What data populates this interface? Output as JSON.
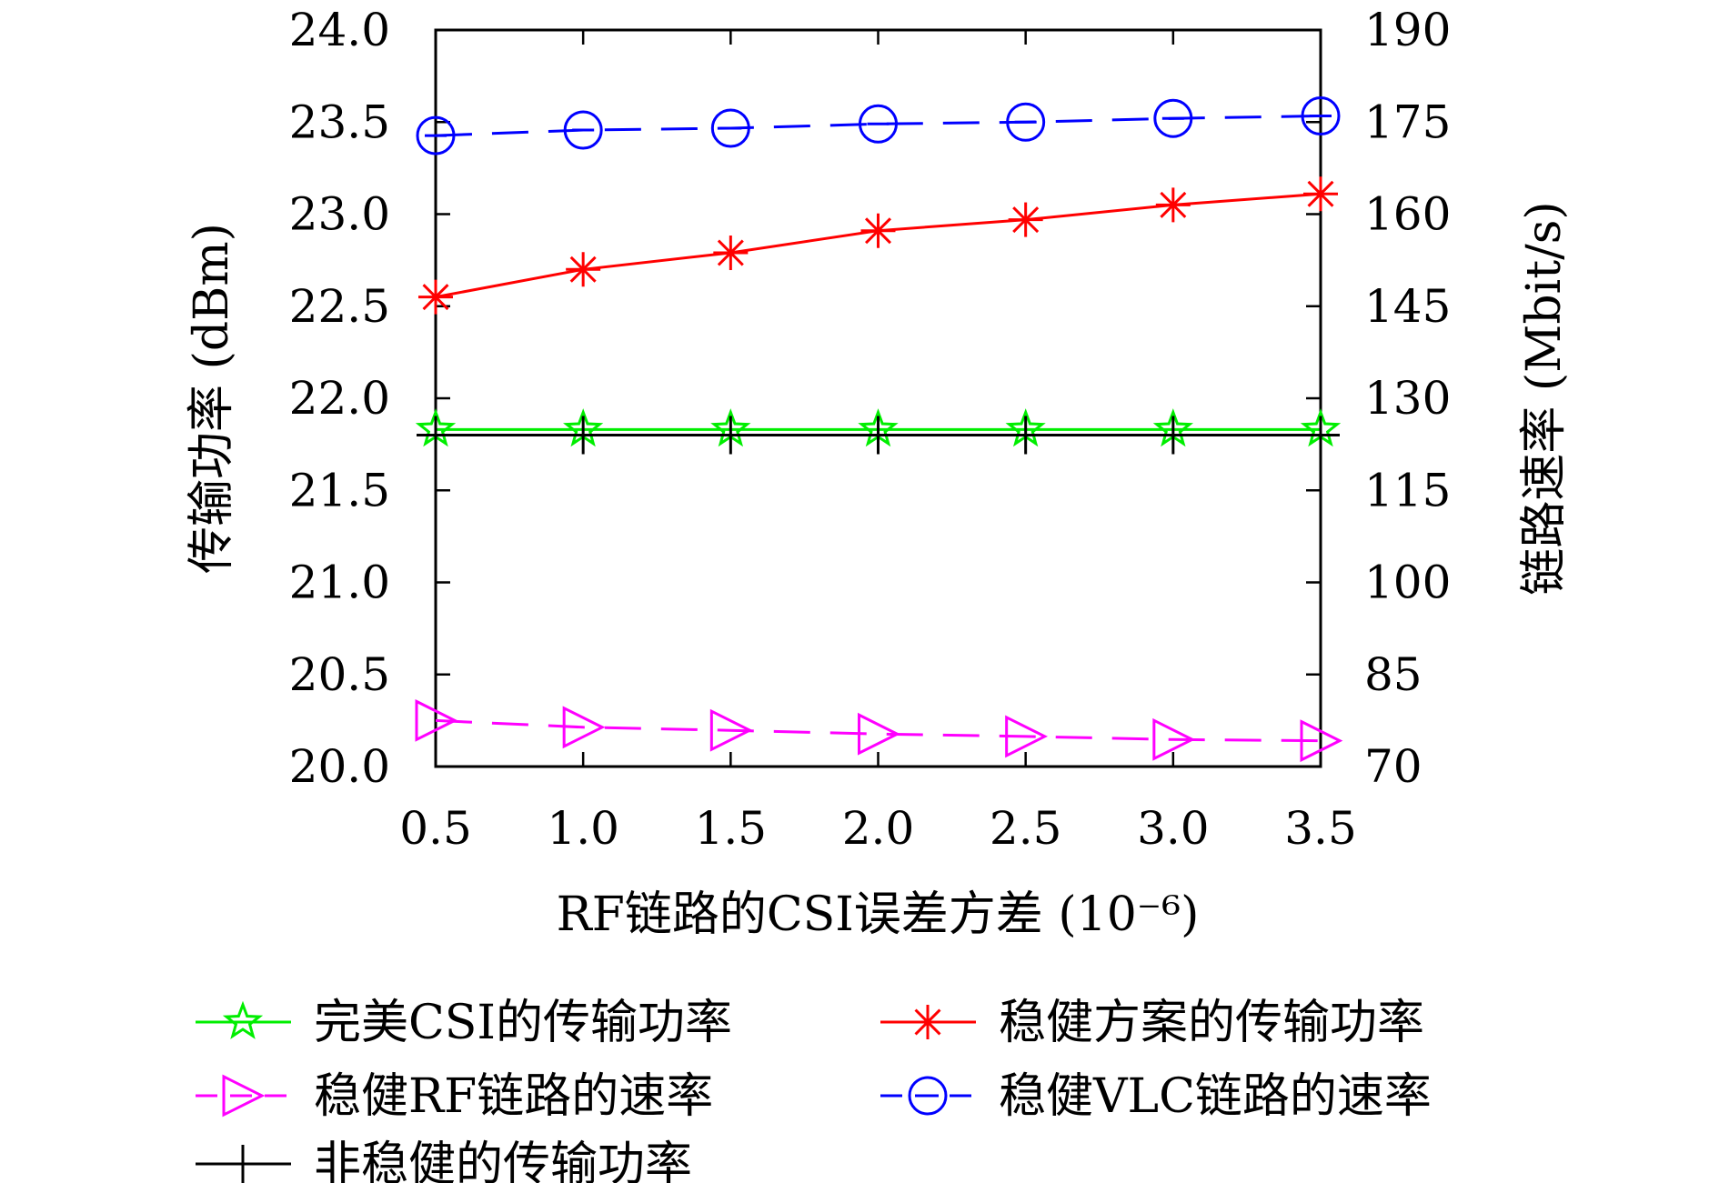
{
  "chart_data": {
    "type": "line",
    "x": [
      0.5,
      1.0,
      1.5,
      2.0,
      2.5,
      3.0,
      3.5
    ],
    "x_tick_labels": [
      "0.5",
      "1.0",
      "1.5",
      "2.0",
      "2.5",
      "3.0",
      "3.5"
    ],
    "xlim": [
      0.5,
      3.5
    ],
    "xlabel": "RF链路的CSI误差方差 (10⁻⁶)",
    "ylabel_left": "传输功率 (dBm)",
    "ylabel_right": "链路速率 (Mbit/s)",
    "ylim_left": [
      20.0,
      24.0
    ],
    "ylim_right": [
      70,
      190
    ],
    "y_left_tick_labels": [
      "20.0",
      "20.5",
      "21.0",
      "21.5",
      "22.0",
      "22.5",
      "23.0",
      "23.5",
      "24.0"
    ],
    "y_right_tick_labels": [
      "70",
      "85",
      "100",
      "115",
      "130",
      "145",
      "160",
      "175",
      "190"
    ],
    "legend_position": "bottom",
    "series": [
      {
        "name": "完美CSI的传输功率",
        "axis": "left",
        "color": "#00ee00",
        "marker": "star-icon",
        "dash": "solid",
        "values": [
          21.83,
          21.83,
          21.83,
          21.83,
          21.83,
          21.83,
          21.83
        ]
      },
      {
        "name": "稳健方案的传输功率",
        "axis": "left",
        "color": "#ff0000",
        "marker": "asterisk-icon",
        "dash": "solid",
        "values": [
          22.55,
          22.7,
          22.79,
          22.91,
          22.97,
          23.05,
          23.11
        ]
      },
      {
        "name": "稳健RF链路的速率",
        "axis": "right",
        "color": "#ff00ff",
        "marker": "triangle-right-icon",
        "dash": "dashed",
        "values": [
          77.5,
          76.4,
          75.9,
          75.3,
          74.9,
          74.4,
          74.2
        ]
      },
      {
        "name": "稳健VLC链路的速率",
        "axis": "right",
        "color": "#0000ff",
        "marker": "circle-minus-icon",
        "dash": "dashed",
        "values": [
          172.8,
          173.7,
          174.0,
          174.7,
          175.0,
          175.6,
          176.0
        ]
      },
      {
        "name": "非稳健的传输功率",
        "axis": "left",
        "color": "#000000",
        "marker": "plus-icon",
        "dash": "solid",
        "values": [
          21.8,
          21.8,
          21.8,
          21.8,
          21.8,
          21.8,
          21.8
        ]
      }
    ]
  }
}
